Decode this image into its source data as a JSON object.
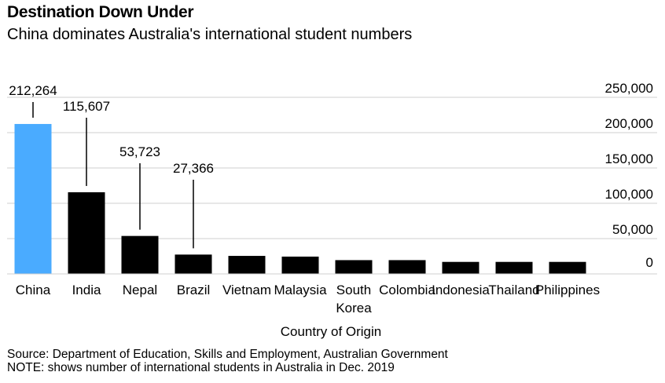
{
  "header": {
    "title": "Destination Down Under",
    "subtitle": "China dominates Australia's international student numbers"
  },
  "footer": {
    "source": "Source: Department of Education, Skills and Employment, Australian Government",
    "note": "NOTE: shows number of international students in Australia in Dec. 2019"
  },
  "chart_data": {
    "type": "bar",
    "title": "Destination Down Under",
    "subtitle": "China dominates Australia's international student numbers",
    "xlabel": "Country of Origin",
    "ylabel": "",
    "ylim": [
      0,
      250000
    ],
    "yticks": [
      "0",
      "50,000",
      "100,000",
      "150,000",
      "200,000",
      "250,000"
    ],
    "ytick_values": [
      0,
      50000,
      100000,
      150000,
      200000,
      250000
    ],
    "y_axis_side": "right",
    "grid": true,
    "categories": [
      [
        "China"
      ],
      [
        "India"
      ],
      [
        "Nepal"
      ],
      [
        "Brazil"
      ],
      [
        "Vietnam"
      ],
      [
        "Malaysia"
      ],
      [
        "South",
        "Korea"
      ],
      [
        "Colombia"
      ],
      [
        "Indonesia"
      ],
      [
        "Thailand"
      ],
      [
        "Philippines"
      ]
    ],
    "values": [
      212264,
      115607,
      53723,
      27366,
      25500,
      24500,
      19500,
      19500,
      17000,
      17000,
      17000
    ],
    "data_labels": [
      "212,264",
      "115,607",
      "53,723",
      "27,366",
      "",
      "",
      "",
      "",
      "",
      "",
      ""
    ],
    "colors": {
      "highlight": "#4aabff",
      "default": "#000000",
      "grid": "#cfcfcf"
    }
  }
}
